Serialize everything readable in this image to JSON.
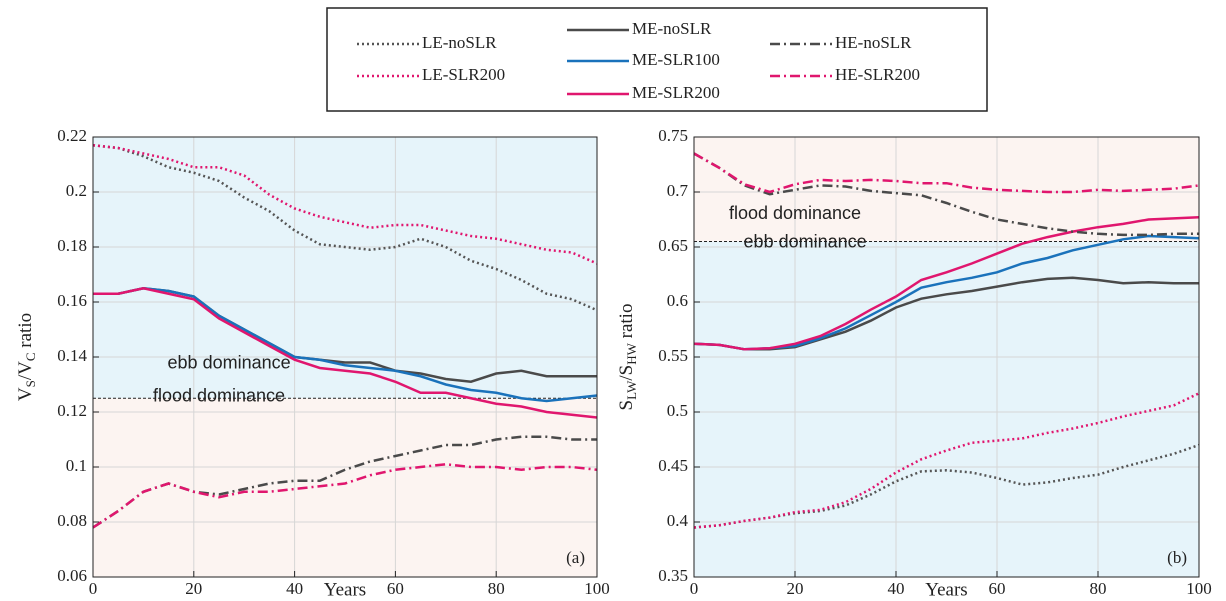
{
  "chart_data": [
    {
      "type": "line",
      "panel_label": "(a)",
      "xlabel": "Years",
      "ylabel": [
        "V",
        "S",
        "/V",
        "C",
        " ratio"
      ],
      "xlim": [
        0,
        100
      ],
      "xticks": [
        0,
        20,
        40,
        60,
        80,
        100
      ],
      "ylim": [
        0.06,
        0.22
      ],
      "yticks": [
        0.06,
        0.08,
        0.1,
        0.12,
        0.14,
        0.16,
        0.18,
        0.2,
        0.22
      ],
      "grid": true,
      "threshold": 0.125,
      "above_label": "ebb dominance",
      "above_label_color": "#19b5e0",
      "below_label": "flood dominance",
      "below_label_color": "#e0166e",
      "above_color": "#e6f4fa",
      "below_color": "#fcf4f1",
      "x": [
        0,
        5,
        10,
        15,
        20,
        25,
        30,
        35,
        40,
        45,
        50,
        55,
        60,
        65,
        70,
        75,
        80,
        85,
        90,
        95,
        100
      ],
      "series": [
        {
          "name": "LE-noSLR",
          "color": "#555555",
          "dash": "dotted",
          "values": [
            0.217,
            0.216,
            0.213,
            0.209,
            0.207,
            0.204,
            0.198,
            0.193,
            0.186,
            0.181,
            0.18,
            0.179,
            0.18,
            0.183,
            0.18,
            0.175,
            0.172,
            0.168,
            0.163,
            0.161,
            0.157
          ]
        },
        {
          "name": "LE-SLR200",
          "color": "#e0166e",
          "dash": "dotted",
          "values": [
            0.217,
            0.216,
            0.214,
            0.212,
            0.209,
            0.209,
            0.206,
            0.199,
            0.194,
            0.191,
            0.189,
            0.187,
            0.188,
            0.188,
            0.186,
            0.184,
            0.183,
            0.181,
            0.179,
            0.178,
            0.174
          ]
        },
        {
          "name": "ME-noSLR",
          "color": "#4a4a4a",
          "dash": "solid",
          "values": [
            0.163,
            0.163,
            0.165,
            0.164,
            0.162,
            0.155,
            0.15,
            0.145,
            0.14,
            0.139,
            0.138,
            0.138,
            0.135,
            0.134,
            0.132,
            0.131,
            0.134,
            0.135,
            0.133,
            0.133,
            0.133
          ]
        },
        {
          "name": "ME-SLR100",
          "color": "#1a72bb",
          "dash": "solid",
          "values": [
            0.163,
            0.163,
            0.165,
            0.164,
            0.162,
            0.155,
            0.15,
            0.145,
            0.14,
            0.139,
            0.137,
            0.136,
            0.135,
            0.133,
            0.13,
            0.128,
            0.127,
            0.125,
            0.124,
            0.125,
            0.126
          ]
        },
        {
          "name": "ME-SLR200",
          "color": "#e0166e",
          "dash": "solid",
          "values": [
            0.163,
            0.163,
            0.165,
            0.163,
            0.161,
            0.154,
            0.149,
            0.144,
            0.139,
            0.136,
            0.135,
            0.134,
            0.131,
            0.127,
            0.127,
            0.125,
            0.123,
            0.122,
            0.12,
            0.119,
            0.118
          ]
        },
        {
          "name": "HE-noSLR",
          "color": "#4a4a4a",
          "dash": "dashdot",
          "values": [
            0.078,
            0.084,
            0.091,
            0.094,
            0.091,
            0.09,
            0.092,
            0.094,
            0.095,
            0.095,
            0.099,
            0.102,
            0.104,
            0.106,
            0.108,
            0.108,
            0.11,
            0.111,
            0.111,
            0.11,
            0.11
          ]
        },
        {
          "name": "HE-SLR200",
          "color": "#e0166e",
          "dash": "dashdot",
          "values": [
            0.078,
            0.084,
            0.091,
            0.094,
            0.091,
            0.089,
            0.091,
            0.091,
            0.092,
            0.093,
            0.094,
            0.097,
            0.099,
            0.1,
            0.101,
            0.1,
            0.1,
            0.099,
            0.1,
            0.1,
            0.099
          ]
        }
      ]
    },
    {
      "type": "line",
      "panel_label": "(b)",
      "xlabel": "Years",
      "ylabel": [
        "S",
        "LW",
        "/S",
        "HW",
        " ratio"
      ],
      "xlim": [
        0,
        100
      ],
      "xticks": [
        0,
        20,
        40,
        60,
        80,
        100
      ],
      "ylim": [
        0.35,
        0.75
      ],
      "yticks": [
        0.35,
        0.4,
        0.45,
        0.5,
        0.55,
        0.6,
        0.65,
        0.7,
        0.75
      ],
      "grid": true,
      "threshold": 0.655,
      "above_label": "flood dominance",
      "above_label_color": "#e0166e",
      "below_label": "ebb dominance",
      "below_label_color": "#19b5e0",
      "above_color": "#fcf4f1",
      "below_color": "#e6f4fa",
      "x": [
        0,
        5,
        10,
        15,
        20,
        25,
        30,
        35,
        40,
        45,
        50,
        55,
        60,
        65,
        70,
        75,
        80,
        85,
        90,
        95,
        100
      ],
      "series": [
        {
          "color": "#555555",
          "dash": "dotted",
          "values": [
            0.395,
            0.397,
            0.401,
            0.404,
            0.408,
            0.41,
            0.415,
            0.425,
            0.437,
            0.446,
            0.447,
            0.445,
            0.44,
            0.434,
            0.436,
            0.44,
            0.443,
            0.45,
            0.456,
            0.462,
            0.47
          ]
        },
        {
          "color": "#e0166e",
          "dash": "dotted",
          "values": [
            0.395,
            0.397,
            0.401,
            0.404,
            0.409,
            0.411,
            0.418,
            0.43,
            0.445,
            0.457,
            0.465,
            0.472,
            0.474,
            0.476,
            0.481,
            0.485,
            0.49,
            0.496,
            0.501,
            0.506,
            0.517
          ]
        },
        {
          "color": "#4a4a4a",
          "dash": "solid",
          "values": [
            0.562,
            0.561,
            0.557,
            0.557,
            0.559,
            0.566,
            0.573,
            0.583,
            0.595,
            0.603,
            0.607,
            0.61,
            0.614,
            0.618,
            0.621,
            0.622,
            0.62,
            0.617,
            0.618,
            0.617,
            0.617
          ]
        },
        {
          "color": "#1a72bb",
          "dash": "solid",
          "values": [
            0.562,
            0.561,
            0.557,
            0.558,
            0.56,
            0.567,
            0.576,
            0.588,
            0.6,
            0.613,
            0.618,
            0.622,
            0.627,
            0.635,
            0.64,
            0.647,
            0.652,
            0.657,
            0.66,
            0.659,
            0.658
          ]
        },
        {
          "color": "#e0166e",
          "dash": "solid",
          "values": [
            0.562,
            0.561,
            0.557,
            0.558,
            0.562,
            0.569,
            0.58,
            0.593,
            0.605,
            0.62,
            0.627,
            0.635,
            0.644,
            0.653,
            0.659,
            0.664,
            0.668,
            0.671,
            0.675,
            0.676,
            0.677
          ]
        },
        {
          "color": "#4a4a4a",
          "dash": "dashdot",
          "values": [
            0.735,
            0.722,
            0.706,
            0.698,
            0.702,
            0.706,
            0.705,
            0.701,
            0.699,
            0.697,
            0.69,
            0.682,
            0.675,
            0.671,
            0.667,
            0.664,
            0.662,
            0.661,
            0.661,
            0.662,
            0.662
          ]
        },
        {
          "color": "#e0166e",
          "dash": "dashdot",
          "values": [
            0.735,
            0.722,
            0.707,
            0.7,
            0.707,
            0.711,
            0.71,
            0.711,
            0.71,
            0.708,
            0.708,
            0.704,
            0.702,
            0.701,
            0.7,
            0.7,
            0.702,
            0.701,
            0.702,
            0.703,
            0.706
          ]
        }
      ]
    }
  ]
}
